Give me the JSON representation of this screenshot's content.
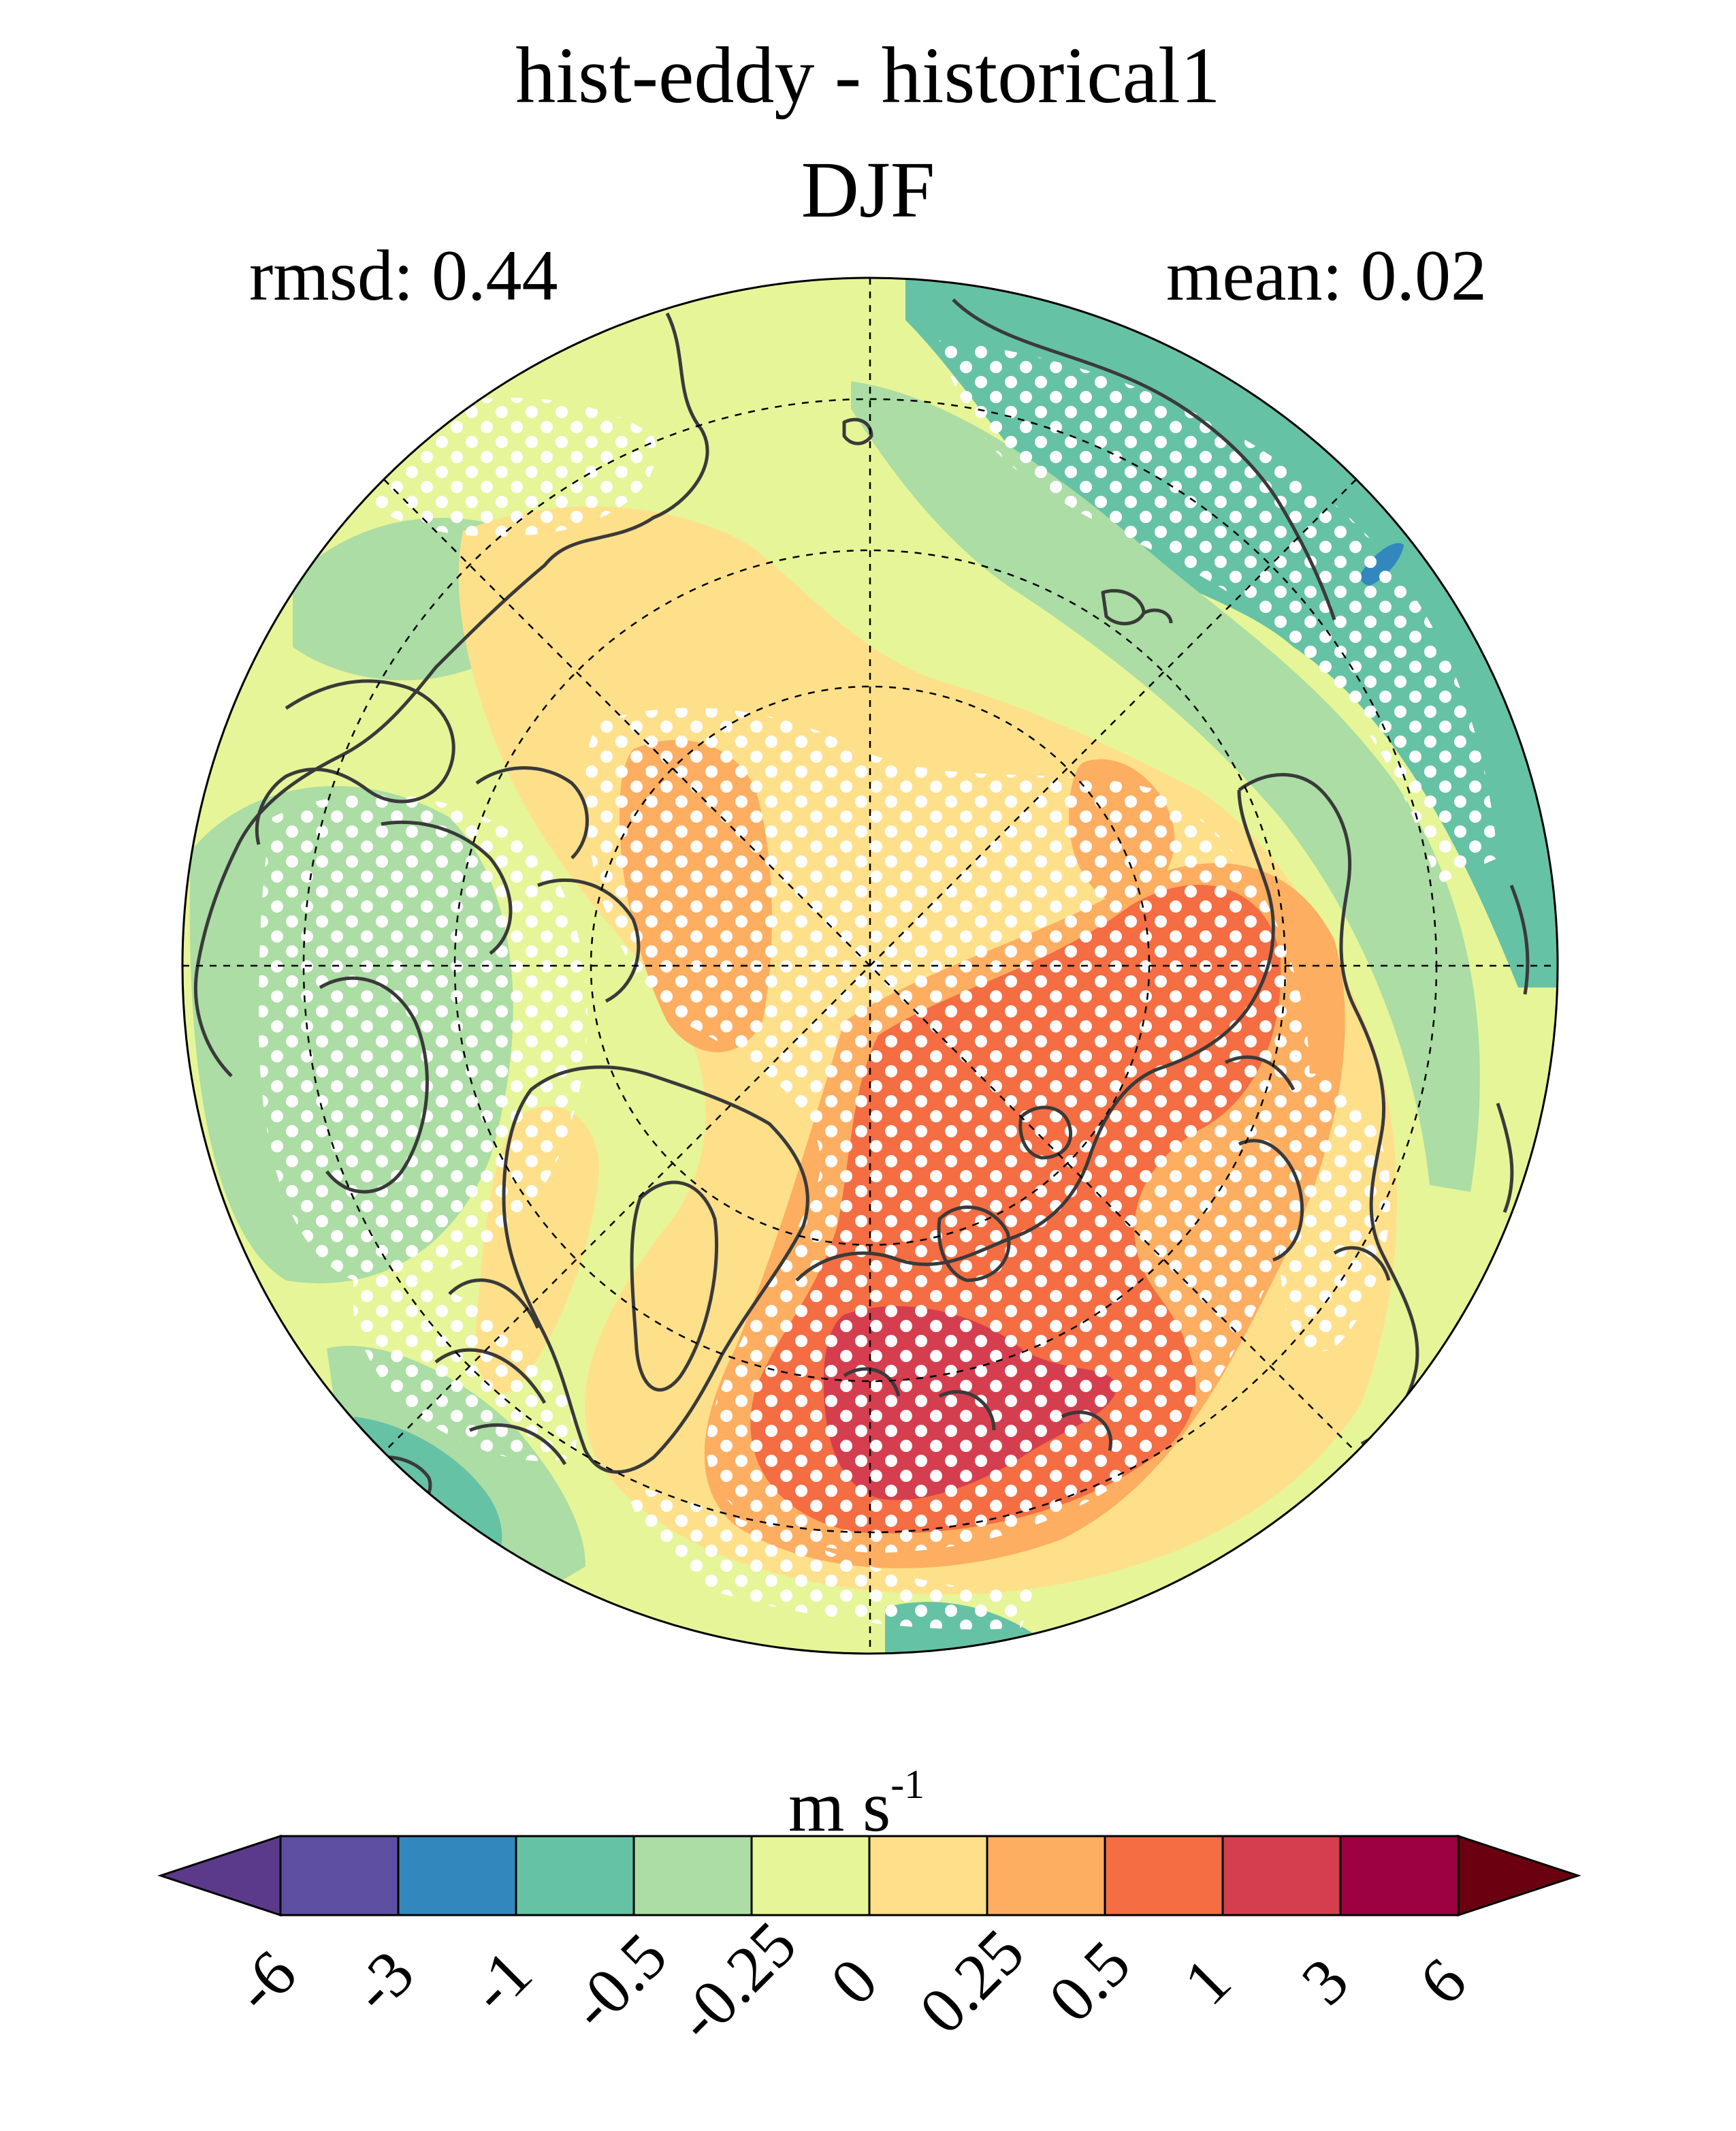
{
  "title": "hist-eddy - historical1",
  "season": "DJF",
  "stats": {
    "rmsd_label": "rmsd: 0.44",
    "mean_label": "mean: 0.02"
  },
  "colorbar": {
    "unit_base": "m s",
    "unit_exp": "-1",
    "tick_labels": [
      "-6",
      "-3",
      "-1",
      "-0.5",
      "-0.25",
      "0",
      "0.25",
      "0.5",
      "1",
      "3",
      "6"
    ],
    "colors": [
      "#5e4fa2",
      "#3288bd",
      "#66c2a5",
      "#abdda4",
      "#e6f598",
      "#fee08b",
      "#fdae61",
      "#f46d43",
      "#d53e4f",
      "#9e0142"
    ],
    "under_color": "#5b3a8c",
    "over_color": "#6a0010",
    "extend": "both"
  },
  "map": {
    "projection": "north polar stereographic",
    "background_color": "#e6f598",
    "stippling": "white dots (significant regions)"
  }
}
